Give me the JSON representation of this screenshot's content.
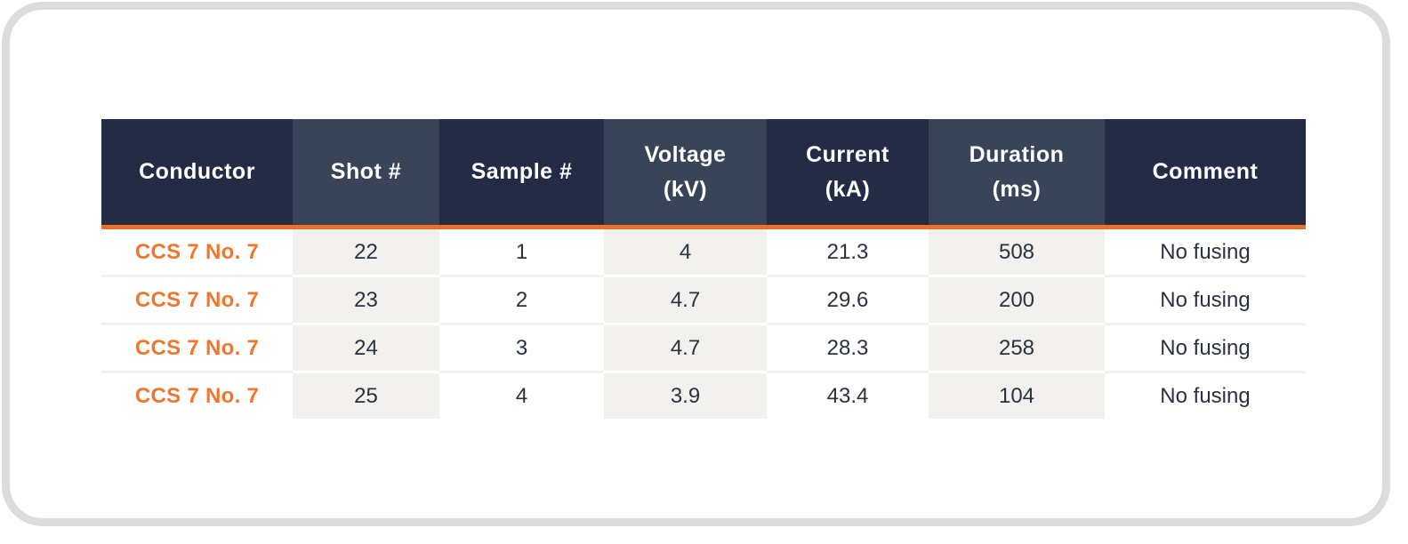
{
  "card": {
    "border_color": "#dcdcdc",
    "background": "#ffffff"
  },
  "table": {
    "columns": [
      {
        "label": "Conductor",
        "shade": "dark",
        "striped": false
      },
      {
        "label": "Shot #",
        "shade": "light",
        "striped": true
      },
      {
        "label": "Sample #",
        "shade": "dark",
        "striped": false
      },
      {
        "label": "Voltage\n(kV)",
        "shade": "light",
        "striped": true
      },
      {
        "label": "Current\n(kA)",
        "shade": "dark",
        "striped": false
      },
      {
        "label": "Duration\n(ms)",
        "shade": "light",
        "striped": true
      },
      {
        "label": "Comment",
        "shade": "dark",
        "striped": false
      }
    ],
    "rows": [
      [
        "CCS 7 No. 7",
        "22",
        "1",
        "4",
        "21.3",
        "508",
        "No fusing"
      ],
      [
        "CCS 7 No. 7",
        "23",
        "2",
        "4.7",
        "29.6",
        "200",
        "No fusing"
      ],
      [
        "CCS 7 No. 7",
        "24",
        "3",
        "4.7",
        "28.3",
        "258",
        "No fusing"
      ],
      [
        "CCS 7 No. 7",
        "25",
        "4",
        "3.9",
        "43.4",
        "104",
        "No fusing"
      ]
    ],
    "colors": {
      "header_dark": "#232c44",
      "header_light": "#3a4459",
      "accent_orange": "#ed7125",
      "conductor_text": "#f0762b",
      "stripe_background": "#f2f1ed",
      "body_text": "#2a3140",
      "card_border": "#dcdcdc"
    }
  },
  "chart_data": {
    "type": "table",
    "columns": [
      "Conductor",
      "Shot #",
      "Sample #",
      "Voltage (kV)",
      "Current (kA)",
      "Duration (ms)",
      "Comment"
    ],
    "rows": [
      {
        "conductor": "CCS 7 No. 7",
        "shot": 22,
        "sample": 1,
        "voltage_kV": 4,
        "current_kA": 21.3,
        "duration_ms": 508,
        "comment": "No fusing"
      },
      {
        "conductor": "CCS 7 No. 7",
        "shot": 23,
        "sample": 2,
        "voltage_kV": 4.7,
        "current_kA": 29.6,
        "duration_ms": 200,
        "comment": "No fusing"
      },
      {
        "conductor": "CCS 7 No. 7",
        "shot": 24,
        "sample": 3,
        "voltage_kV": 4.7,
        "current_kA": 28.3,
        "duration_ms": 258,
        "comment": "No fusing"
      },
      {
        "conductor": "CCS 7 No. 7",
        "shot": 25,
        "sample": 4,
        "voltage_kV": 3.9,
        "current_kA": 43.4,
        "duration_ms": 104,
        "comment": "No fusing"
      }
    ]
  }
}
